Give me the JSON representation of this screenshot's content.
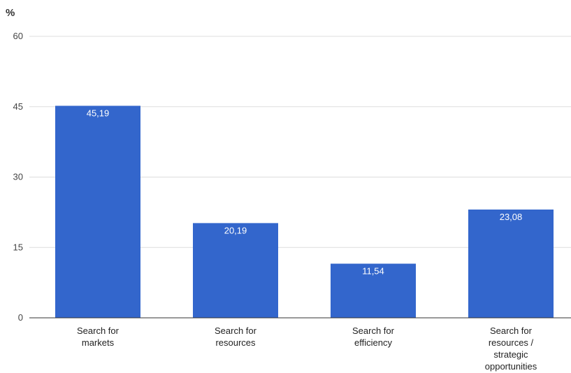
{
  "colors": {
    "bar": "#3366cc",
    "grid": "#dddddd",
    "baseline": "#333333"
  },
  "chart_data": {
    "type": "bar",
    "title": "",
    "xlabel": "",
    "ylabel": "%",
    "ylim": [
      0,
      60
    ],
    "yticks": [
      "0",
      "15",
      "30",
      "45",
      "60"
    ],
    "grid": true,
    "categories": [
      "Search for markets",
      "Search for resources",
      "Search for efficiency",
      "Search for resources / strategic opportunities"
    ],
    "category_lines": [
      [
        "Search for",
        "markets"
      ],
      [
        "Search for",
        "resources"
      ],
      [
        "Search for",
        "efficiency"
      ],
      [
        "Search for",
        "resources /",
        "strategic",
        "opportunities"
      ]
    ],
    "values": [
      45.19,
      20.19,
      11.54,
      23.08
    ],
    "data_labels": [
      "45,19",
      "20,19",
      "11,54",
      "23,08"
    ]
  }
}
